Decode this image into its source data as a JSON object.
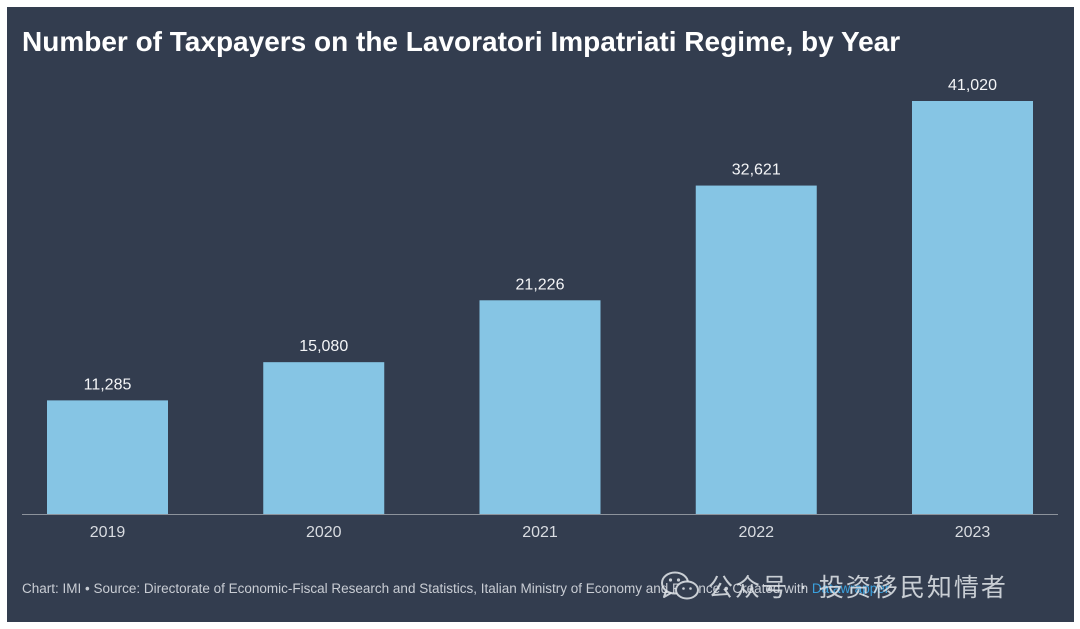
{
  "colors": {
    "page_background": "#ffffff",
    "panel_background": "#333d4f",
    "bar": "#86c5e4",
    "title": "#ffffff",
    "value_label": "#f4f5f7",
    "tick_label": "#d9dce1",
    "axis_line": "#8d939c",
    "footer_text": "#c9cdd4",
    "link": "#3aa0dd"
  },
  "chart_data": {
    "type": "bar",
    "title": "Number of Taxpayers on the Lavoratori Impatriati Regime, by Year",
    "categories": [
      "2019",
      "2020",
      "2021",
      "2022",
      "2023"
    ],
    "values": [
      11285,
      15080,
      21226,
      32621,
      41020
    ],
    "xlabel": "",
    "ylabel": "",
    "ylim": [
      0,
      41020
    ],
    "grid": false,
    "legend": "none"
  },
  "footer": {
    "chart_label": "Chart:",
    "chart_by": "IMI",
    "separator": "•",
    "source_label": "Source:",
    "source": "Directorate of Economic-Fiscal Research and Statistics, Italian Ministry of Economy and Finance",
    "created_label": "Created with",
    "tool": "Datawrapper"
  },
  "watermark": {
    "icon": "wechat-icon",
    "text": "公众号 · 投资移民知情者"
  }
}
